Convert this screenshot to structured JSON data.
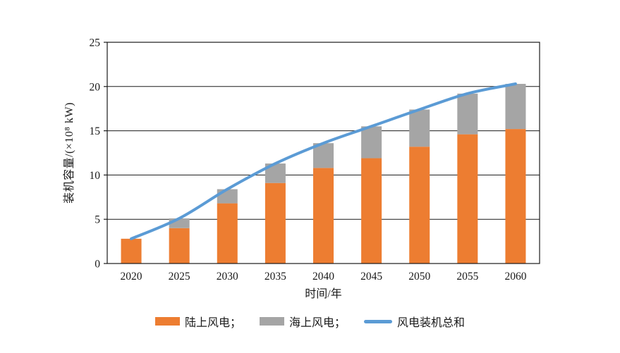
{
  "chart_data": {
    "type": "bar",
    "subtype": "stacked-bars-with-total-line",
    "title": "",
    "categories": [
      "2020",
      "2025",
      "2030",
      "2035",
      "2040",
      "2045",
      "2050",
      "2055",
      "2060"
    ],
    "series": [
      {
        "name": "陆上风电",
        "type": "bar",
        "stack": "capacity",
        "color": "#ED7D31",
        "values": [
          2.8,
          4.0,
          6.8,
          9.1,
          10.8,
          11.9,
          13.2,
          14.6,
          15.2
        ]
      },
      {
        "name": "海上风电",
        "type": "bar",
        "stack": "capacity",
        "color": "#A5A5A5",
        "values": [
          0,
          1.1,
          1.6,
          2.2,
          2.8,
          3.6,
          4.2,
          4.6,
          5.1
        ]
      },
      {
        "name": "风电装机总和",
        "type": "line",
        "color": "#5B9BD5",
        "values": [
          2.8,
          5.1,
          8.4,
          11.3,
          13.6,
          15.5,
          17.4,
          19.2,
          20.3
        ]
      }
    ],
    "xlabel": "时间/年",
    "ylabel": "装机容量/(×10⁸ kW)",
    "ylim": [
      0,
      25
    ],
    "yticks": [
      0,
      5,
      10,
      15,
      20,
      25
    ],
    "grid": true,
    "legend_position": "bottom",
    "legend": [
      {
        "label": "陆上风电；",
        "swatch": "rect",
        "color": "#ED7D31"
      },
      {
        "label": "海上风电；",
        "swatch": "rect",
        "color": "#A5A5A5"
      },
      {
        "label": "风电装机总和",
        "swatch": "line",
        "color": "#5B9BD5"
      }
    ],
    "colors": {
      "onshore_bar": "#ED7D31",
      "offshore_bar": "#A5A5A5",
      "total_line": "#5B9BD5",
      "axis": "#1a1a1a",
      "background": "#ffffff"
    }
  }
}
